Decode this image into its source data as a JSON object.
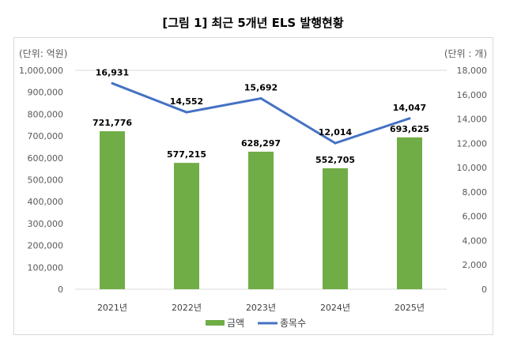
{
  "title": "[그림 1] 최근 5개년 ELS 발행현황",
  "chart_data": {
    "type": "bar+line",
    "title": "[그림 1] 최근 5개년 ELS 발행현황",
    "categories": [
      "2021년",
      "2022년",
      "2023년",
      "2024년",
      "2025년"
    ],
    "left_axis": {
      "unit_label": "(단위: 억원)",
      "range": [
        0,
        1000000
      ],
      "ticks": [
        "0",
        "100,000",
        "200,000",
        "300,000",
        "400,000",
        "500,000",
        "600,000",
        "700,000",
        "800,000",
        "900,000",
        "1,000,000"
      ]
    },
    "right_axis": {
      "unit_label": "(단위 : 개)",
      "range": [
        0,
        18000
      ],
      "ticks": [
        "0",
        "2,000",
        "4,000",
        "6,000",
        "8,000",
        "10,000",
        "12,000",
        "14,000",
        "16,000",
        "18,000"
      ]
    },
    "series": [
      {
        "name": "금액",
        "type": "bar",
        "axis": "left",
        "color": "#70ad47",
        "values": [
          721776,
          577215,
          628297,
          552705,
          693625
        ],
        "labels": [
          "721,776",
          "577,215",
          "628,297",
          "552,705",
          "693,625"
        ]
      },
      {
        "name": "종목수",
        "type": "line",
        "axis": "right",
        "color": "#4472c4",
        "values": [
          16931,
          14552,
          15692,
          12014,
          14047
        ],
        "labels": [
          "16,931",
          "14,552",
          "15,692",
          "12,014",
          "14,047"
        ]
      }
    ],
    "legend": "bottom",
    "grid": false
  }
}
